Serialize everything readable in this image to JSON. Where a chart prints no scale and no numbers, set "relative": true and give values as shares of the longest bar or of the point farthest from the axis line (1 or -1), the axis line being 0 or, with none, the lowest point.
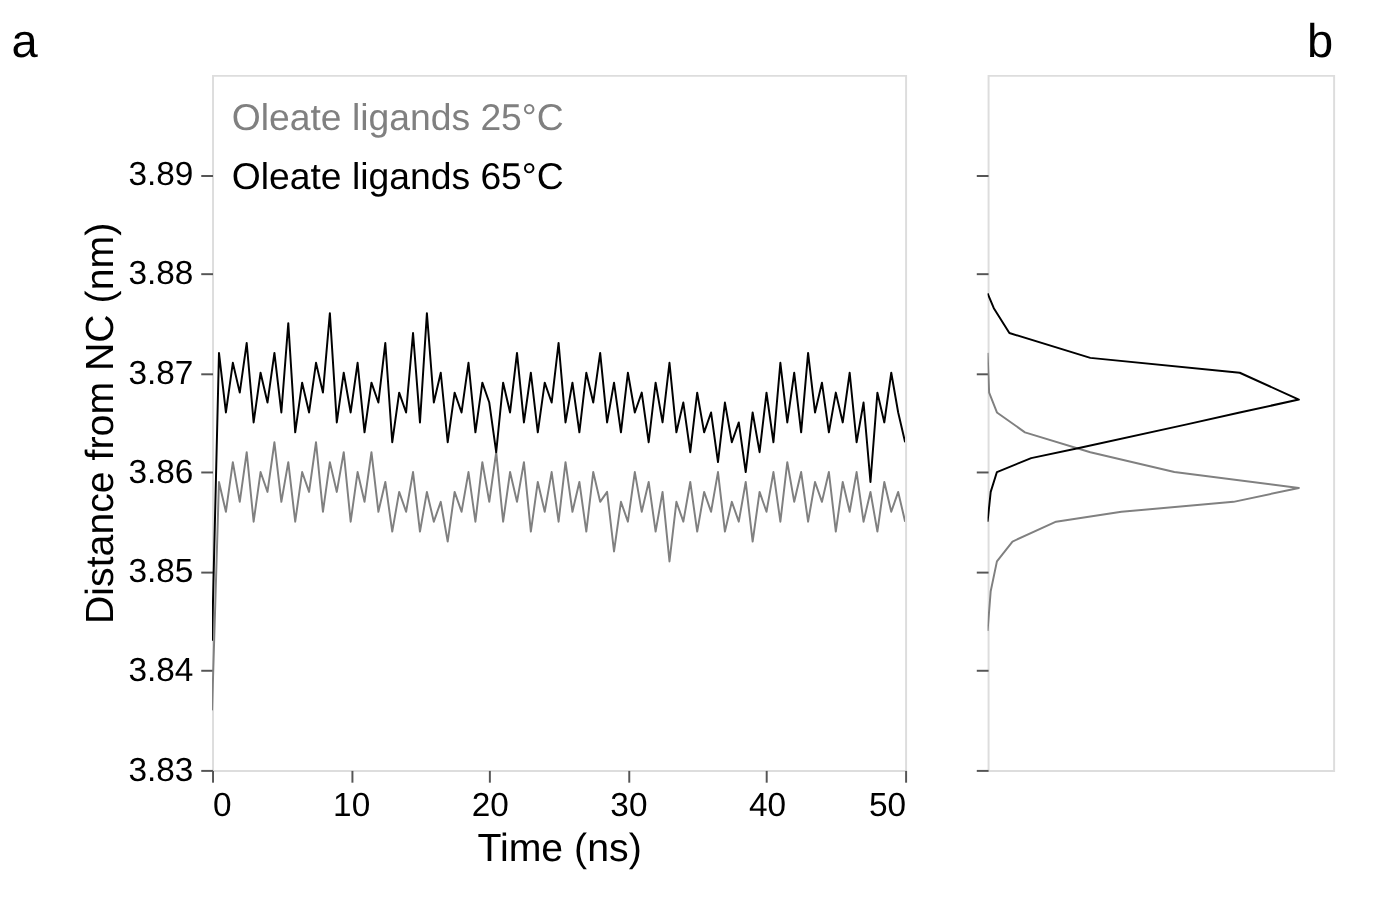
{
  "chart_data": [
    {
      "type": "line",
      "title": "a",
      "xlabel": "Time (ns)",
      "ylabel": "Distance from NC (nm)",
      "legend": "top left",
      "x": [
        0,
        0.5,
        1,
        1.5,
        2,
        2.5,
        3,
        3.5,
        4,
        4.5,
        5,
        5.5,
        6,
        6.5,
        7,
        7.5,
        8,
        8.5,
        9,
        9.5,
        10,
        10.5,
        11,
        11.5,
        12,
        12.5,
        13,
        13.5,
        14,
        14.5,
        15,
        15.5,
        16,
        16.5,
        17,
        17.5,
        18,
        18.5,
        19,
        19.5,
        20,
        20.5,
        21,
        21.5,
        22,
        22.5,
        23,
        23.5,
        24,
        24.5,
        25,
        25.5,
        26,
        26.5,
        27,
        27.5,
        28,
        28.5,
        29,
        29.5,
        30,
        30.5,
        31,
        31.5,
        32,
        32.5,
        33,
        33.5,
        34,
        34.5,
        35,
        35.5,
        36,
        36.5,
        37,
        37.5,
        38,
        38.5,
        39,
        39.5,
        40,
        40.5,
        41,
        41.5,
        42,
        42.5,
        43,
        43.5,
        44,
        44.5,
        45,
        45.5,
        46,
        46.5,
        47,
        47.5,
        48,
        48.5,
        49,
        49.5,
        50
      ],
      "series": [
        {
          "name": "Oleate ligands 25°C",
          "color": "#808080",
          "values": [
            3.836,
            3.859,
            3.856,
            3.861,
            3.857,
            3.862,
            3.855,
            3.86,
            3.858,
            3.863,
            3.857,
            3.861,
            3.855,
            3.86,
            3.858,
            3.863,
            3.856,
            3.861,
            3.858,
            3.862,
            3.855,
            3.86,
            3.857,
            3.862,
            3.856,
            3.859,
            3.854,
            3.858,
            3.856,
            3.86,
            3.854,
            3.858,
            3.855,
            3.857,
            3.853,
            3.858,
            3.856,
            3.86,
            3.855,
            3.861,
            3.857,
            3.862,
            3.855,
            3.86,
            3.857,
            3.861,
            3.854,
            3.859,
            3.856,
            3.86,
            3.855,
            3.861,
            3.856,
            3.859,
            3.854,
            3.86,
            3.857,
            3.858,
            3.852,
            3.857,
            3.855,
            3.86,
            3.856,
            3.859,
            3.854,
            3.858,
            3.851,
            3.857,
            3.855,
            3.859,
            3.854,
            3.858,
            3.856,
            3.86,
            3.854,
            3.857,
            3.855,
            3.859,
            3.853,
            3.858,
            3.856,
            3.86,
            3.855,
            3.861,
            3.857,
            3.86,
            3.855,
            3.859,
            3.857,
            3.86,
            3.854,
            3.859,
            3.856,
            3.86,
            3.855,
            3.858,
            3.854,
            3.859,
            3.856,
            3.858,
            3.855
          ]
        },
        {
          "name": "Oleate ligands 65°C",
          "color": "#000000",
          "values": [
            3.843,
            3.872,
            3.866,
            3.871,
            3.868,
            3.873,
            3.865,
            3.87,
            3.867,
            3.872,
            3.866,
            3.875,
            3.864,
            3.869,
            3.866,
            3.871,
            3.868,
            3.876,
            3.865,
            3.87,
            3.866,
            3.871,
            3.864,
            3.869,
            3.867,
            3.873,
            3.863,
            3.868,
            3.866,
            3.874,
            3.865,
            3.876,
            3.867,
            3.87,
            3.863,
            3.868,
            3.866,
            3.871,
            3.864,
            3.869,
            3.867,
            3.862,
            3.869,
            3.866,
            3.872,
            3.865,
            3.87,
            3.864,
            3.869,
            3.867,
            3.873,
            3.865,
            3.869,
            3.864,
            3.87,
            3.867,
            3.872,
            3.865,
            3.869,
            3.864,
            3.87,
            3.866,
            3.868,
            3.863,
            3.869,
            3.865,
            3.871,
            3.864,
            3.867,
            3.862,
            3.868,
            3.864,
            3.866,
            3.861,
            3.867,
            3.863,
            3.865,
            3.86,
            3.866,
            3.862,
            3.868,
            3.863,
            3.871,
            3.865,
            3.87,
            3.864,
            3.872,
            3.866,
            3.869,
            3.864,
            3.868,
            3.865,
            3.87,
            3.863,
            3.867,
            3.859,
            3.868,
            3.865,
            3.87,
            3.866,
            3.863
          ]
        }
      ],
      "xlim": [
        0,
        50
      ],
      "xticks": [
        0,
        10,
        20,
        30,
        40,
        50
      ],
      "ylim": [
        3.83,
        3.9
      ],
      "yticks": [
        3.83,
        3.84,
        3.85,
        3.86,
        3.87,
        3.88,
        3.89
      ]
    },
    {
      "type": "line",
      "title": "b",
      "orientation": "horizontal",
      "relative": true,
      "tick_labels": false,
      "ylim": [
        3.83,
        3.9
      ],
      "yticks": [
        3.83,
        3.84,
        3.85,
        3.86,
        3.87,
        3.88,
        3.89
      ],
      "series": [
        {
          "color": "#808080",
          "x": [
            3.844,
            3.848,
            3.851,
            3.853,
            3.855,
            3.856,
            3.857,
            3.8584,
            3.86,
            3.862,
            3.864,
            3.866,
            3.868,
            3.872
          ],
          "values": [
            0,
            0.01,
            0.03,
            0.08,
            0.22,
            0.43,
            0.79,
            1,
            0.6,
            0.33,
            0.12,
            0.03,
            0.005,
            0
          ]
        },
        {
          "color": "#000000",
          "x": [
            3.855,
            3.858,
            3.86,
            3.8614,
            3.8624,
            3.8648,
            3.866,
            3.8673,
            3.87,
            3.8715,
            3.874,
            3.8765,
            3.878
          ],
          "values": [
            0,
            0.01,
            0.03,
            0.14,
            0.29,
            0.64,
            0.81,
            1,
            0.81,
            0.33,
            0.07,
            0.02,
            0
          ]
        }
      ]
    }
  ]
}
